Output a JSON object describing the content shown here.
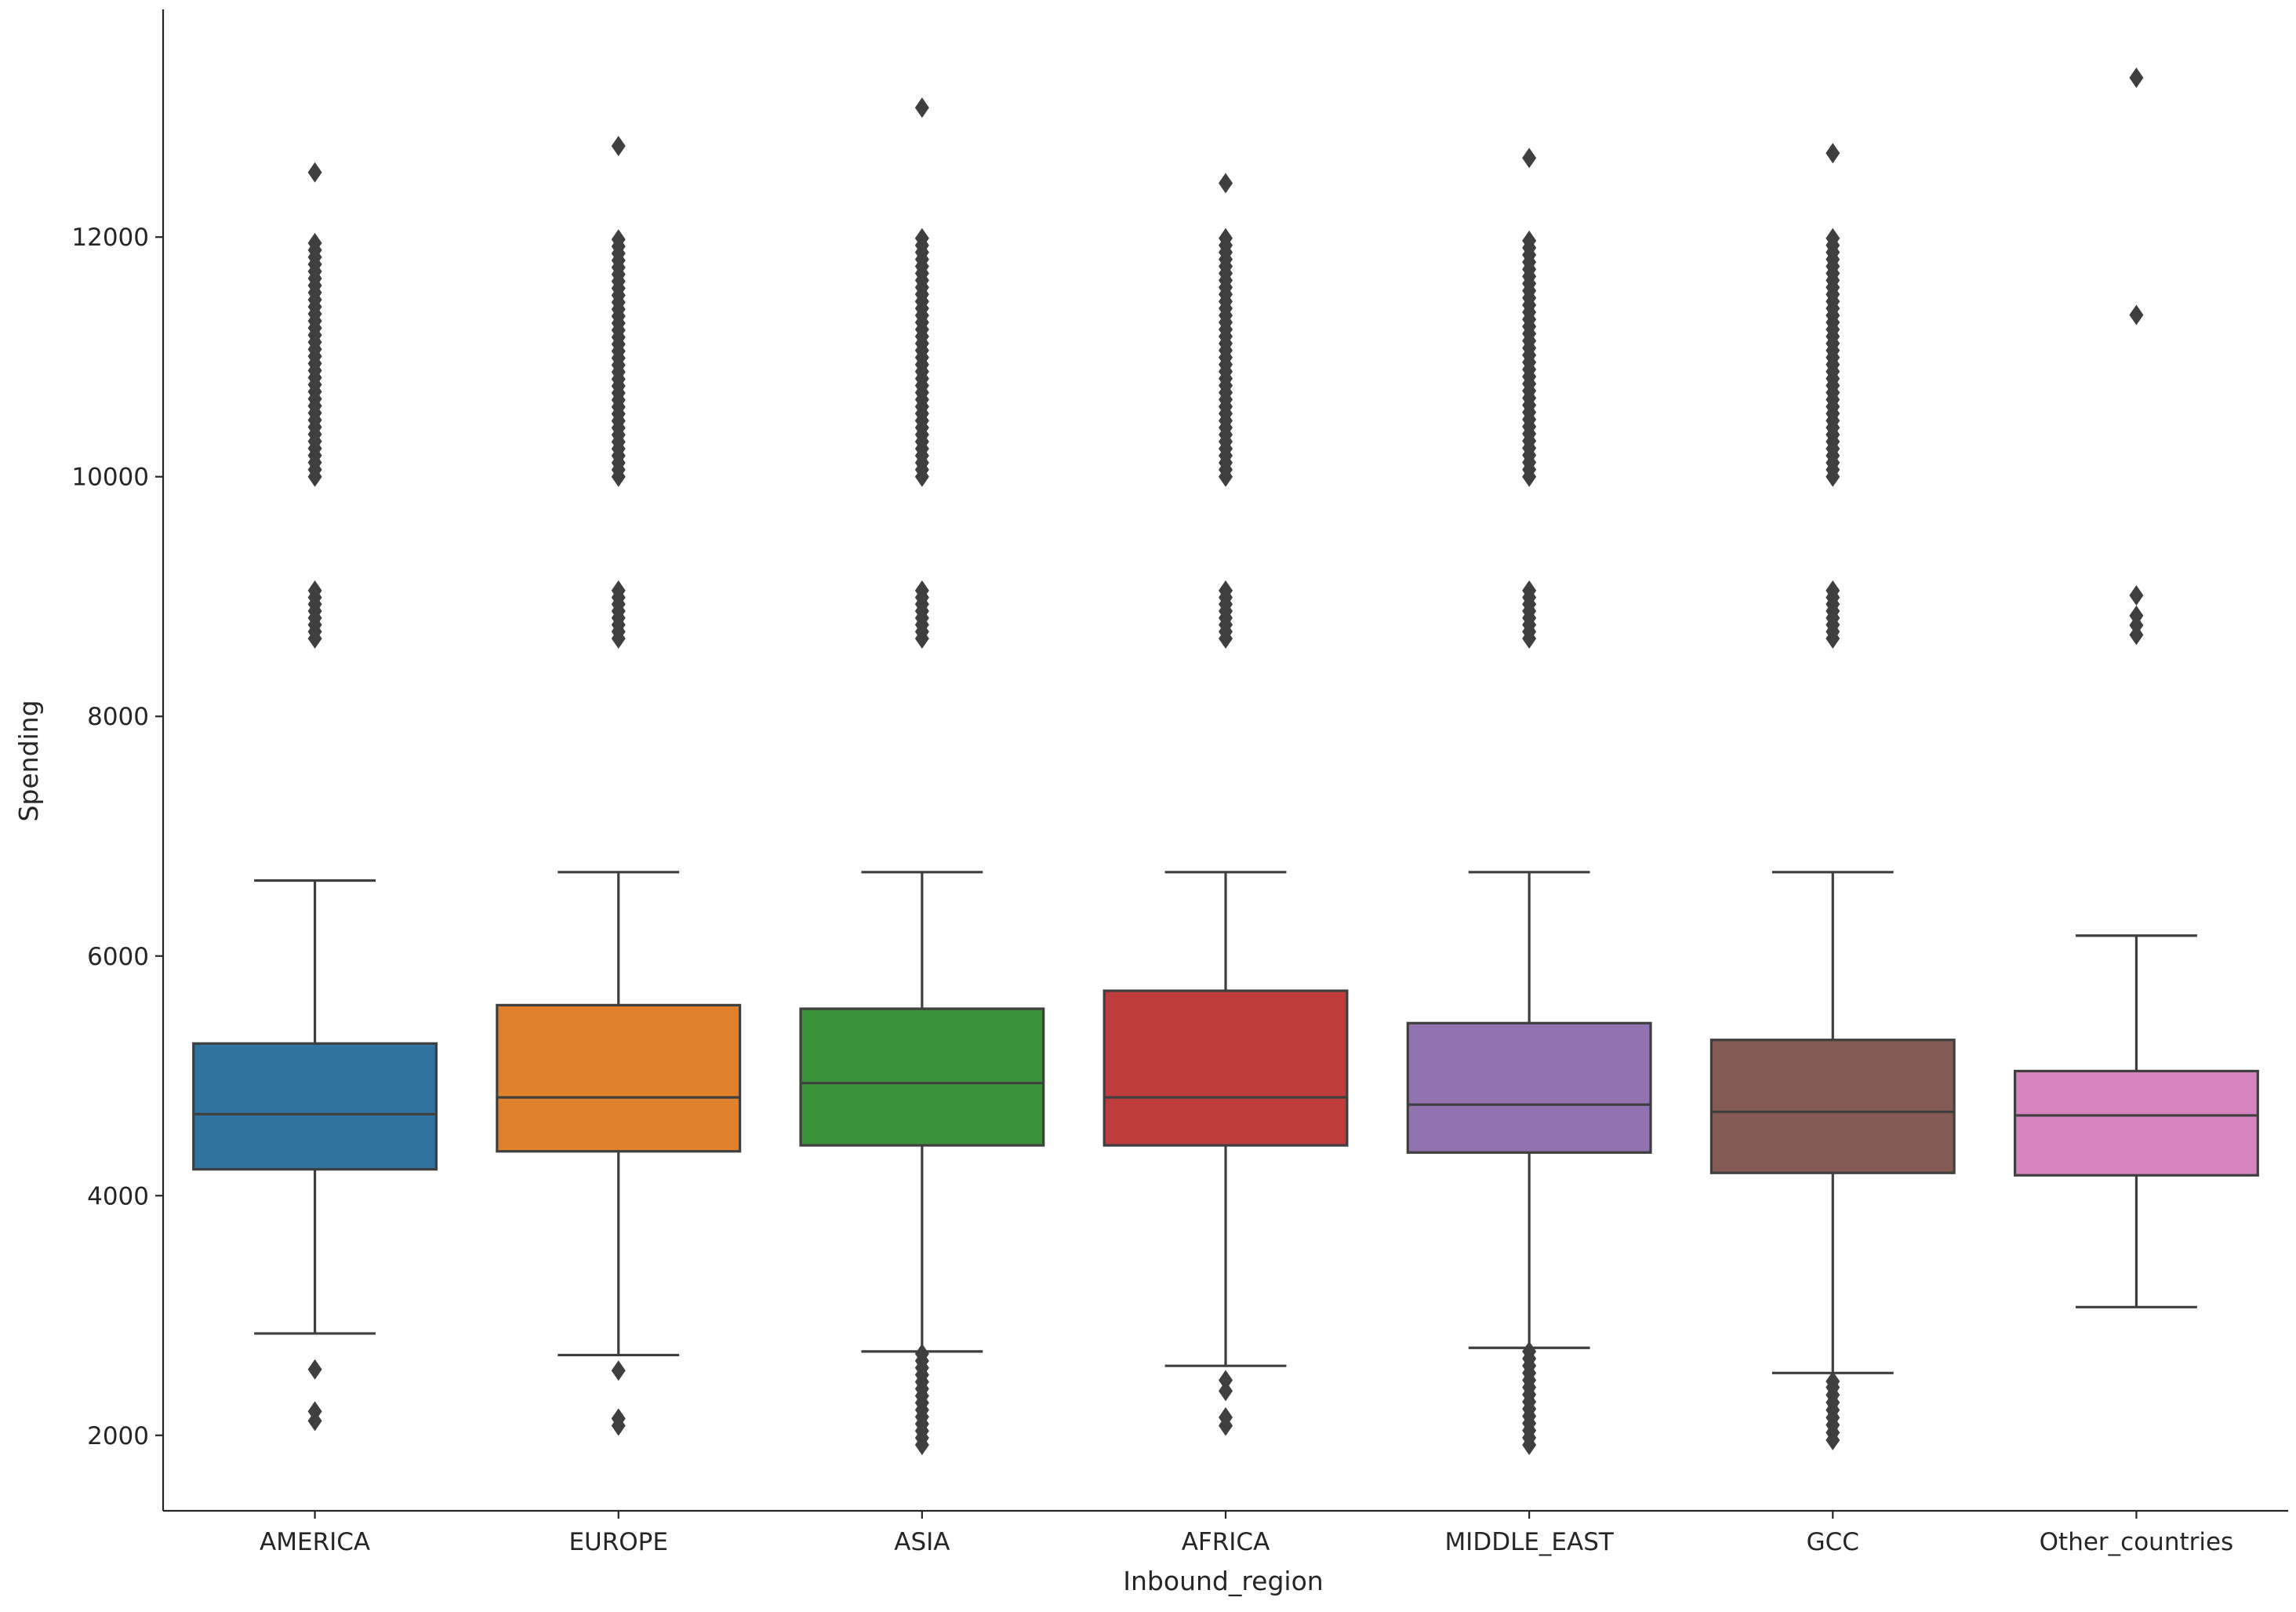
{
  "chart_data": {
    "type": "box",
    "title": "",
    "xlabel": "Inbound_region",
    "ylabel": "Spending",
    "ylim": [
      1370,
      13900
    ],
    "yticks": [
      2000,
      4000,
      6000,
      8000,
      10000,
      12000
    ],
    "grid": false,
    "legend": "none",
    "categories": [
      "AMERICA",
      "EUROPE",
      "ASIA",
      "AFRICA",
      "MIDDLE_EAST",
      "GCC",
      "Other_countries"
    ],
    "colors": [
      "#3274a1",
      "#e1812c",
      "#3a923a",
      "#c03d3e",
      "#9372b2",
      "#845b53",
      "#d684bd"
    ],
    "series": [
      {
        "name": "AMERICA",
        "whisker_low": 2850,
        "q1": 4220,
        "median": 4680,
        "q3": 5270,
        "whisker_high": 6630,
        "outliers_low": [
          2550,
          2200,
          2120
        ],
        "outlier_bands_high": [
          [
            8650,
            9050
          ],
          [
            10000,
            11950
          ]
        ],
        "outliers_high": [
          12540
        ]
      },
      {
        "name": "EUROPE",
        "whisker_low": 2670,
        "q1": 4370,
        "median": 4820,
        "q3": 5590,
        "whisker_high": 6700,
        "outliers_low": [
          2540,
          2140,
          2080
        ],
        "outlier_bands_high": [
          [
            8650,
            9050
          ],
          [
            10000,
            11980
          ]
        ],
        "outliers_high": [
          12760
        ]
      },
      {
        "name": "ASIA",
        "whisker_low": 2700,
        "q1": 4420,
        "median": 4940,
        "q3": 5560,
        "whisker_high": 6700,
        "outliers_low": [],
        "outlier_bands_low": [
          [
            1920,
            2680
          ]
        ],
        "outlier_bands_high": [
          [
            8650,
            9050
          ],
          [
            10000,
            11990
          ]
        ],
        "outliers_high": [
          13080
        ]
      },
      {
        "name": "AFRICA",
        "whisker_low": 2580,
        "q1": 4420,
        "median": 4820,
        "q3": 5710,
        "whisker_high": 6700,
        "outliers_low": [
          2460,
          2370,
          2150,
          2080
        ],
        "outlier_bands_high": [
          [
            8650,
            9050
          ],
          [
            10000,
            11990
          ]
        ],
        "outliers_high": [
          12450
        ]
      },
      {
        "name": "MIDDLE_EAST",
        "whisker_low": 2730,
        "q1": 4360,
        "median": 4760,
        "q3": 5440,
        "whisker_high": 6700,
        "outliers_low": [],
        "outlier_bands_low": [
          [
            1920,
            2700
          ]
        ],
        "outlier_bands_high": [
          [
            8650,
            9050
          ],
          [
            10000,
            11970
          ]
        ],
        "outliers_high": [
          12660
        ]
      },
      {
        "name": "GCC",
        "whisker_low": 2520,
        "q1": 4190,
        "median": 4700,
        "q3": 5300,
        "whisker_high": 6700,
        "outliers_low": [
          2450
        ],
        "outlier_bands_low": [
          [
            1960,
            2400
          ]
        ],
        "outlier_bands_high": [
          [
            8650,
            9050
          ],
          [
            10000,
            11990
          ]
        ],
        "outliers_high": [
          12700
        ]
      },
      {
        "name": "Other_countries",
        "whisker_low": 3070,
        "q1": 4170,
        "median": 4670,
        "q3": 5040,
        "whisker_high": 6170,
        "outliers_low": [],
        "outlier_bands_high": [],
        "outliers_high": [
          8680,
          8760,
          8840,
          9010,
          11350,
          13330
        ]
      }
    ]
  }
}
